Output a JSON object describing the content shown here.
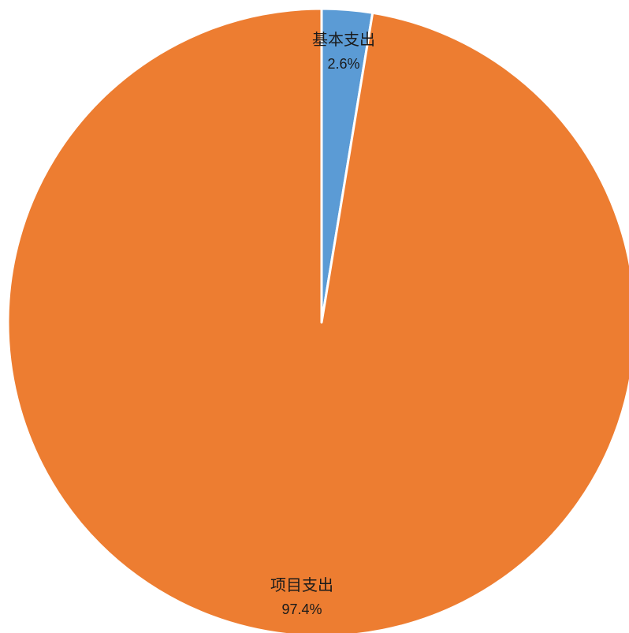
{
  "chart_data": {
    "type": "pie",
    "title": "",
    "start_angle_deg": 0,
    "direction": "clockwise",
    "slices": [
      {
        "label": "基本支出",
        "percent_label": "2.6%",
        "value": 2.6,
        "color": "#5b9bd5"
      },
      {
        "label": "项目支出",
        "percent_label": "97.4%",
        "value": 97.4,
        "color": "#ed7d31"
      }
    ],
    "legend": "none",
    "slice_border_color": "#ffffff"
  }
}
